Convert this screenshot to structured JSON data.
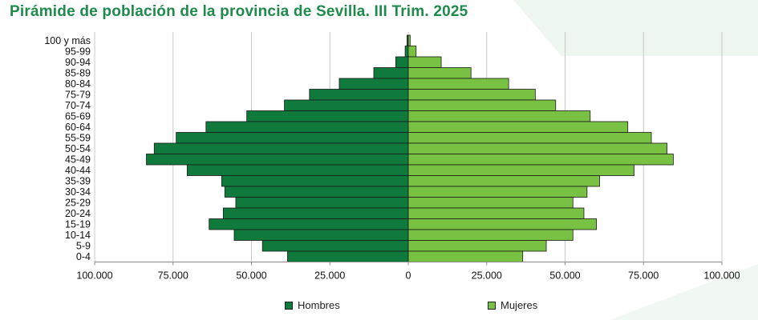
{
  "title": "Pirámide de población de la provincia de Sevilla. III Trim. 2025",
  "chart_data": {
    "type": "bar",
    "orientation": "horizontal",
    "title": "Pirámide de población de la provincia de Sevilla. III Trim. 2025",
    "categories": [
      "100 y más",
      "95-99",
      "90-94",
      "85-89",
      "80-84",
      "75-79",
      "70-74",
      "65-69",
      "60-64",
      "55-59",
      "50-54",
      "45-49",
      "40-44",
      "35-39",
      "30-34",
      "25-29",
      "20-24",
      "15-19",
      "10-14",
      "5-9",
      "0-4"
    ],
    "series": [
      {
        "name": "Hombres",
        "color": "#0f7a3b",
        "values": [
          400,
          1000,
          4000,
          11000,
          22000,
          31500,
          39500,
          51500,
          64500,
          74000,
          81000,
          83500,
          70500,
          59500,
          58500,
          55000,
          59000,
          63500,
          55500,
          46500,
          38500
        ]
      },
      {
        "name": "Mujeres",
        "color": "#79c143",
        "values": [
          600,
          2500,
          10500,
          20000,
          32000,
          40500,
          47000,
          58000,
          70000,
          77500,
          82500,
          84500,
          72000,
          61000,
          57000,
          52500,
          56000,
          60000,
          52500,
          44000,
          36500
        ]
      }
    ],
    "xlim": [
      -100000,
      100000
    ],
    "xticks": [
      "100.000",
      "75.000",
      "50.000",
      "25.000",
      "0",
      "25.000",
      "50.000",
      "75.000",
      "100.000"
    ],
    "grid": true,
    "legend_position": "bottom"
  }
}
